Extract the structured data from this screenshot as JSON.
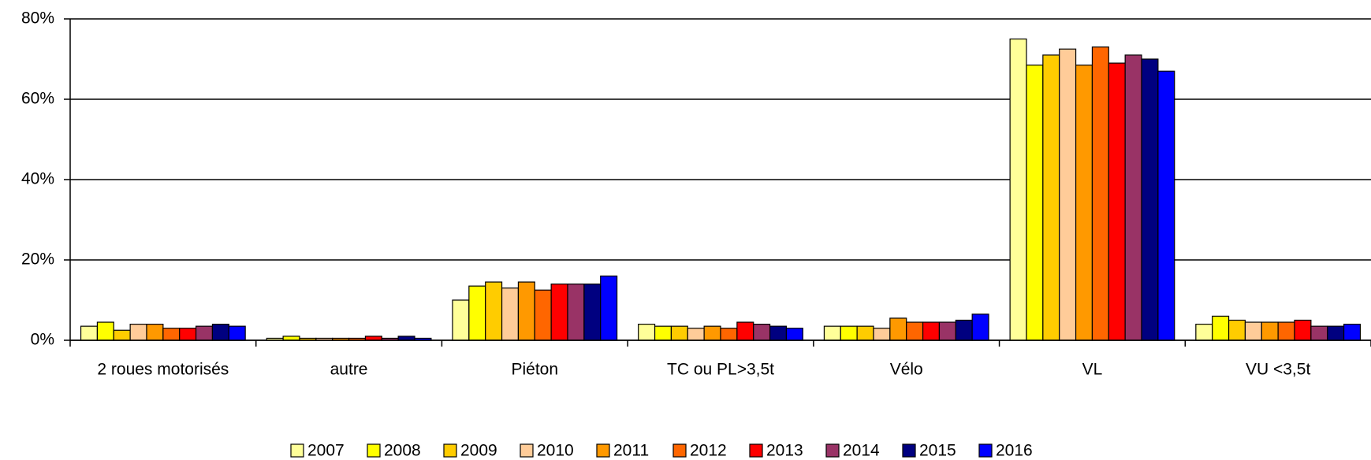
{
  "chart_data": {
    "type": "bar",
    "categories": [
      "2 roues motorisés",
      "autre",
      "Piéton",
      "TC ou PL>3,5t",
      "Vélo",
      "VL",
      "VU <3,5t"
    ],
    "series": [
      {
        "name": "2007",
        "color": "#FFFF99",
        "values": [
          3.5,
          0.5,
          10,
          4,
          3.5,
          75,
          4
        ]
      },
      {
        "name": "2008",
        "color": "#FFFF00",
        "values": [
          4.5,
          1,
          13.5,
          3.5,
          3.5,
          68.5,
          6
        ]
      },
      {
        "name": "2009",
        "color": "#FFCC00",
        "values": [
          2.5,
          0.5,
          14.5,
          3.5,
          3.5,
          71,
          5
        ]
      },
      {
        "name": "2010",
        "color": "#FFCC99",
        "values": [
          4,
          0.5,
          13,
          3,
          3,
          72.5,
          4.5
        ]
      },
      {
        "name": "2011",
        "color": "#FF9900",
        "values": [
          4,
          0.5,
          14.5,
          3.5,
          5.5,
          68.5,
          4.5
        ]
      },
      {
        "name": "2012",
        "color": "#FF6600",
        "values": [
          3,
          0.5,
          12.5,
          3,
          4.5,
          73,
          4.5
        ]
      },
      {
        "name": "2013",
        "color": "#FF0000",
        "values": [
          3,
          1,
          14,
          4.5,
          4.5,
          69,
          5
        ]
      },
      {
        "name": "2014",
        "color": "#993366",
        "values": [
          3.5,
          0.5,
          14,
          4,
          4.5,
          71,
          3.5
        ]
      },
      {
        "name": "2015",
        "color": "#000080",
        "values": [
          4,
          1,
          14,
          3.5,
          5,
          70,
          3.5
        ]
      },
      {
        "name": "2016",
        "color": "#0000FF",
        "values": [
          3.5,
          0.5,
          16,
          3,
          6.5,
          67,
          4
        ]
      }
    ],
    "ylim": [
      0,
      80
    ],
    "yticks": [
      {
        "value": 0,
        "label": "0%"
      },
      {
        "value": 20,
        "label": "20%"
      },
      {
        "value": 40,
        "label": "40%"
      },
      {
        "value": 60,
        "label": "60%"
      },
      {
        "value": 80,
        "label": "80%"
      }
    ],
    "grid": true,
    "legend": "bottom"
  }
}
